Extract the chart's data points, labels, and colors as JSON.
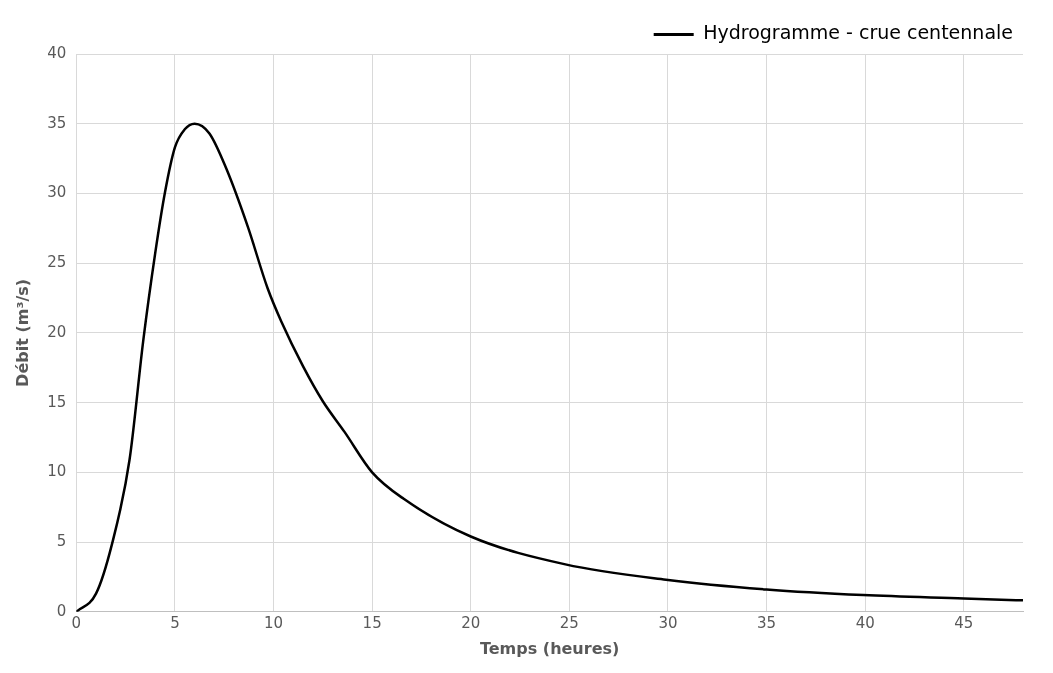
{
  "chart_data": {
    "type": "line",
    "xlabel": "Temps (heures)",
    "ylabel": "Débit (m³/s)",
    "x": [
      0,
      1,
      1.8,
      2.7,
      3.4,
      4,
      4.5,
      5,
      5.5,
      6,
      6.75,
      7.6,
      8.7,
      9.7,
      10.4,
      11.5,
      12.5,
      13.6,
      15,
      16.6,
      20,
      24.8,
      29.9,
      35,
      39.9,
      45,
      48
    ],
    "series": [
      {
        "name": "Hydrogramme - crue centennale",
        "color": "#000000",
        "values": [
          0,
          1.3,
          4.8,
          10.9,
          19.5,
          25.7,
          30.1,
          33.3,
          34.6,
          35,
          34.3,
          31.8,
          27.6,
          23.2,
          20.8,
          17.6,
          15.1,
          12.9,
          10,
          8.1,
          5.4,
          3.4,
          2.3,
          1.6,
          1.2,
          0.96,
          0.82
        ]
      }
    ],
    "xlim": [
      0,
      48
    ],
    "xticks": [
      0,
      5,
      10,
      15,
      20,
      25,
      30,
      35,
      40,
      45
    ],
    "ylim": [
      0,
      40
    ],
    "yticks": [
      0,
      5,
      10,
      15,
      20,
      25,
      30,
      35,
      40
    ],
    "grid": true,
    "legend": "top right",
    "marker": "none",
    "line_style": "solid"
  }
}
